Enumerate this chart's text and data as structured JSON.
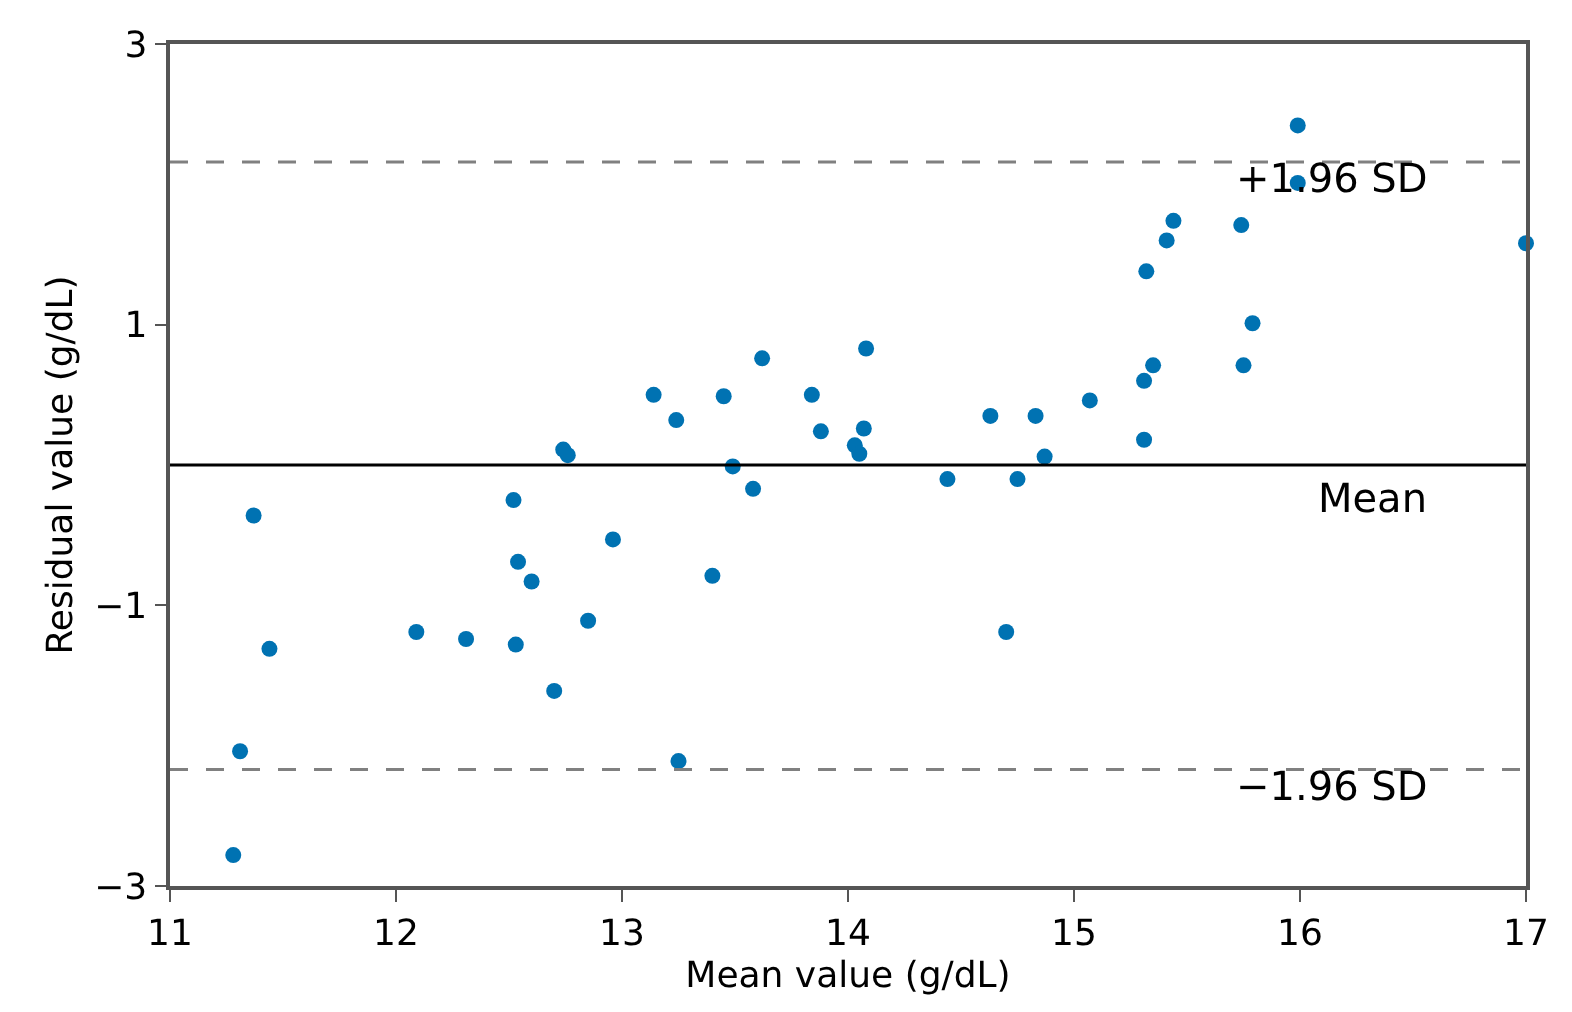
{
  "chart_data": {
    "type": "scatter",
    "xlabel": "Mean value (g/dL)",
    "ylabel": "Residual value (g/dL)",
    "xlim": [
      11,
      17
    ],
    "xticks": [
      11,
      12,
      13,
      14,
      15,
      16,
      17
    ],
    "ylim": [
      -3,
      3
    ],
    "yticks": [
      {
        "value": -3,
        "label": "−3"
      },
      {
        "value": -1,
        "label": "−1"
      },
      1,
      3
    ],
    "grid": false,
    "marker": "circle",
    "series": [
      {
        "color": "#0072b2",
        "x": [
          11.28,
          11.31,
          11.37,
          11.44,
          12.09,
          12.31,
          12.52,
          12.53,
          12.54,
          12.6,
          12.7,
          12.74,
          12.76,
          12.85,
          12.96,
          13.14,
          13.24,
          13.25,
          13.4,
          13.45,
          13.49,
          13.58,
          13.62,
          13.84,
          13.88,
          14.03,
          14.05,
          14.07,
          14.08,
          14.44,
          14.63,
          14.7,
          14.75,
          14.83,
          14.87,
          15.07,
          15.31,
          15.31,
          15.32,
          15.35,
          15.41,
          15.44,
          15.74,
          15.75,
          15.79,
          15.99,
          15.99,
          17.0
        ],
        "values": [
          -2.78,
          -2.04,
          -0.36,
          -1.31,
          -1.19,
          -1.24,
          -0.25,
          -1.28,
          -0.69,
          -0.83,
          -1.61,
          0.11,
          0.07,
          -1.11,
          -0.53,
          0.5,
          0.32,
          -2.11,
          -0.79,
          0.49,
          -0.01,
          -0.17,
          0.76,
          0.5,
          0.24,
          0.14,
          0.08,
          0.26,
          0.83,
          -0.1,
          0.35,
          -1.19,
          -0.1,
          0.35,
          0.06,
          0.46,
          0.6,
          0.18,
          1.38,
          0.71,
          1.6,
          1.74,
          1.71,
          0.71,
          1.01,
          2.42,
          2.01,
          1.58
        ]
      }
    ],
    "ref_lines": [
      {
        "axis": "y",
        "value": 2.16,
        "label": "+1.96 SD",
        "color": "#808080",
        "line_style": "dashed"
      },
      {
        "axis": "y",
        "value": 0,
        "label": "Mean",
        "color": "#000000",
        "line_style": "solid"
      },
      {
        "axis": "y",
        "value": -2.17,
        "label": "−1.96 SD",
        "color": "#808080",
        "line_style": "dashed"
      }
    ]
  }
}
